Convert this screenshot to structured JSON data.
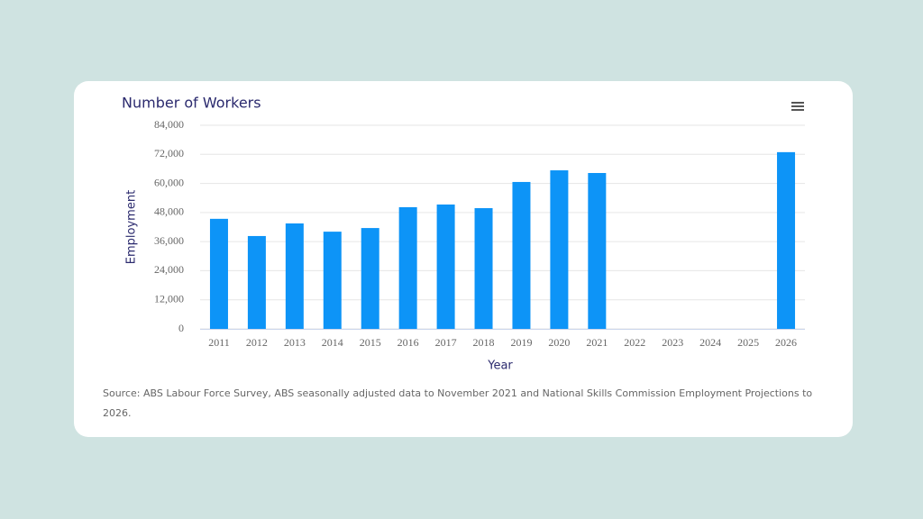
{
  "chart_data": {
    "type": "bar",
    "title": "Number of Workers",
    "x_label": "Year",
    "y_label": "Employment",
    "categories": [
      "2011",
      "2012",
      "2013",
      "2014",
      "2015",
      "2016",
      "2017",
      "2018",
      "2019",
      "2020",
      "2021",
      "2022",
      "2023",
      "2024",
      "2025",
      "2026"
    ],
    "values": [
      45400,
      38300,
      43500,
      40100,
      41600,
      50200,
      51300,
      49800,
      60600,
      65400,
      64300,
      null,
      null,
      null,
      null,
      72900
    ],
    "color": "#0d94f7",
    "ylim": [
      0,
      84000
    ],
    "yticks": [
      0,
      {
        "value": 12000,
        "label": "12,000"
      },
      {
        "value": 24000,
        "label": "24,000"
      },
      {
        "value": 36000,
        "label": "36,000"
      },
      {
        "value": 48000,
        "label": "48,000"
      },
      {
        "value": 60000,
        "label": "60,000"
      },
      {
        "value": 72000,
        "label": "72,000"
      },
      {
        "value": 84000,
        "label": "84,000"
      }
    ],
    "grid": true,
    "source": "Source: ABS Labour Force Survey, ABS seasonally adjusted data to November 2021 and National Skills Commission Employment Projections to 2026."
  }
}
